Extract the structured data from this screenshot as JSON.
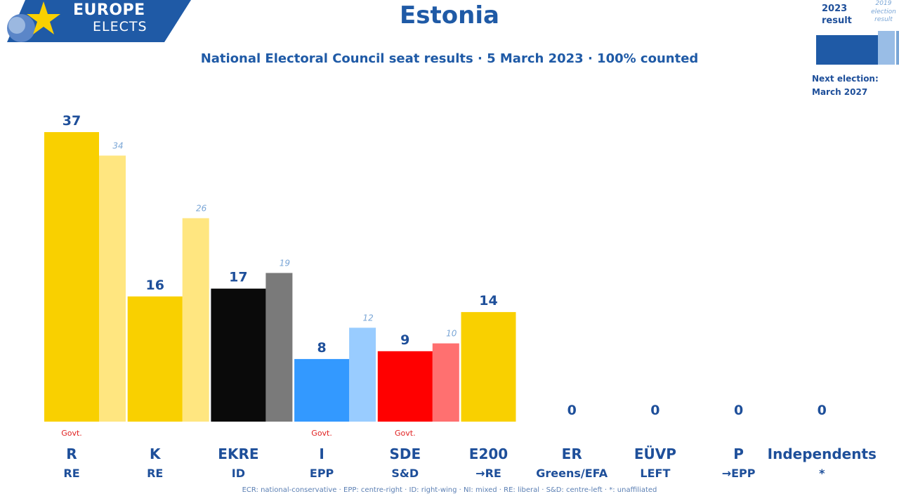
{
  "brand": {
    "line1": "EUROPE",
    "line2": "ELECTS"
  },
  "colors": {
    "brand_blue": "#1f5aa6",
    "govt_red": "#e02020"
  },
  "key": {
    "result_year": "2023",
    "result_label": "result",
    "previous_line1": "2019",
    "previous_line2": "election",
    "previous_line3": "result",
    "next_election_label": "Next election:",
    "next_election_date": "March 2027"
  },
  "footer": "ECR: national-conservative · EPP: centre-right · ID: right-wing · NI: mixed · RE: liberal · S&D: centre-left · *: unaffiliated",
  "chart_data": {
    "type": "bar",
    "title": "Estonia",
    "subtitle": "National Electoral Council seat results · 5 March 2023 · 100% counted",
    "categories": [
      "R",
      "K",
      "EKRE",
      "I",
      "SDE",
      "E200",
      "ER",
      "EÜVP",
      "P",
      "Independents"
    ],
    "groups": [
      "RE",
      "RE",
      "ID",
      "EPP",
      "S&D",
      "→RE",
      "Greens/EFA",
      "LEFT",
      "→EPP",
      "*"
    ],
    "govt": [
      true,
      false,
      false,
      true,
      true,
      false,
      false,
      false,
      false,
      false
    ],
    "govt_label": "Govt.",
    "series": [
      {
        "name": "2023 result",
        "values": [
          37,
          16,
          17,
          8,
          9,
          14,
          0,
          0,
          0,
          0
        ]
      },
      {
        "name": "2019 election result",
        "values": [
          34,
          26,
          19,
          12,
          10,
          null,
          null,
          null,
          null,
          null
        ]
      }
    ],
    "colors": [
      "#f9d000",
      "#f9d000",
      "#0a0a0a",
      "#3399ff",
      "#ff0000",
      "#f9d000",
      "#f9d000",
      "#f9d000",
      "#f9d000",
      "#f9d000"
    ],
    "prev_colors": [
      "#ffe680",
      "#ffe680",
      "#7a7a7a",
      "#99ccff",
      "#ff7070",
      "#ffe680",
      "#ffe680",
      "#ffe680",
      "#ffe680",
      "#ffe680"
    ],
    "ylim": [
      0,
      37
    ],
    "grid": false,
    "legend": "top-right"
  }
}
